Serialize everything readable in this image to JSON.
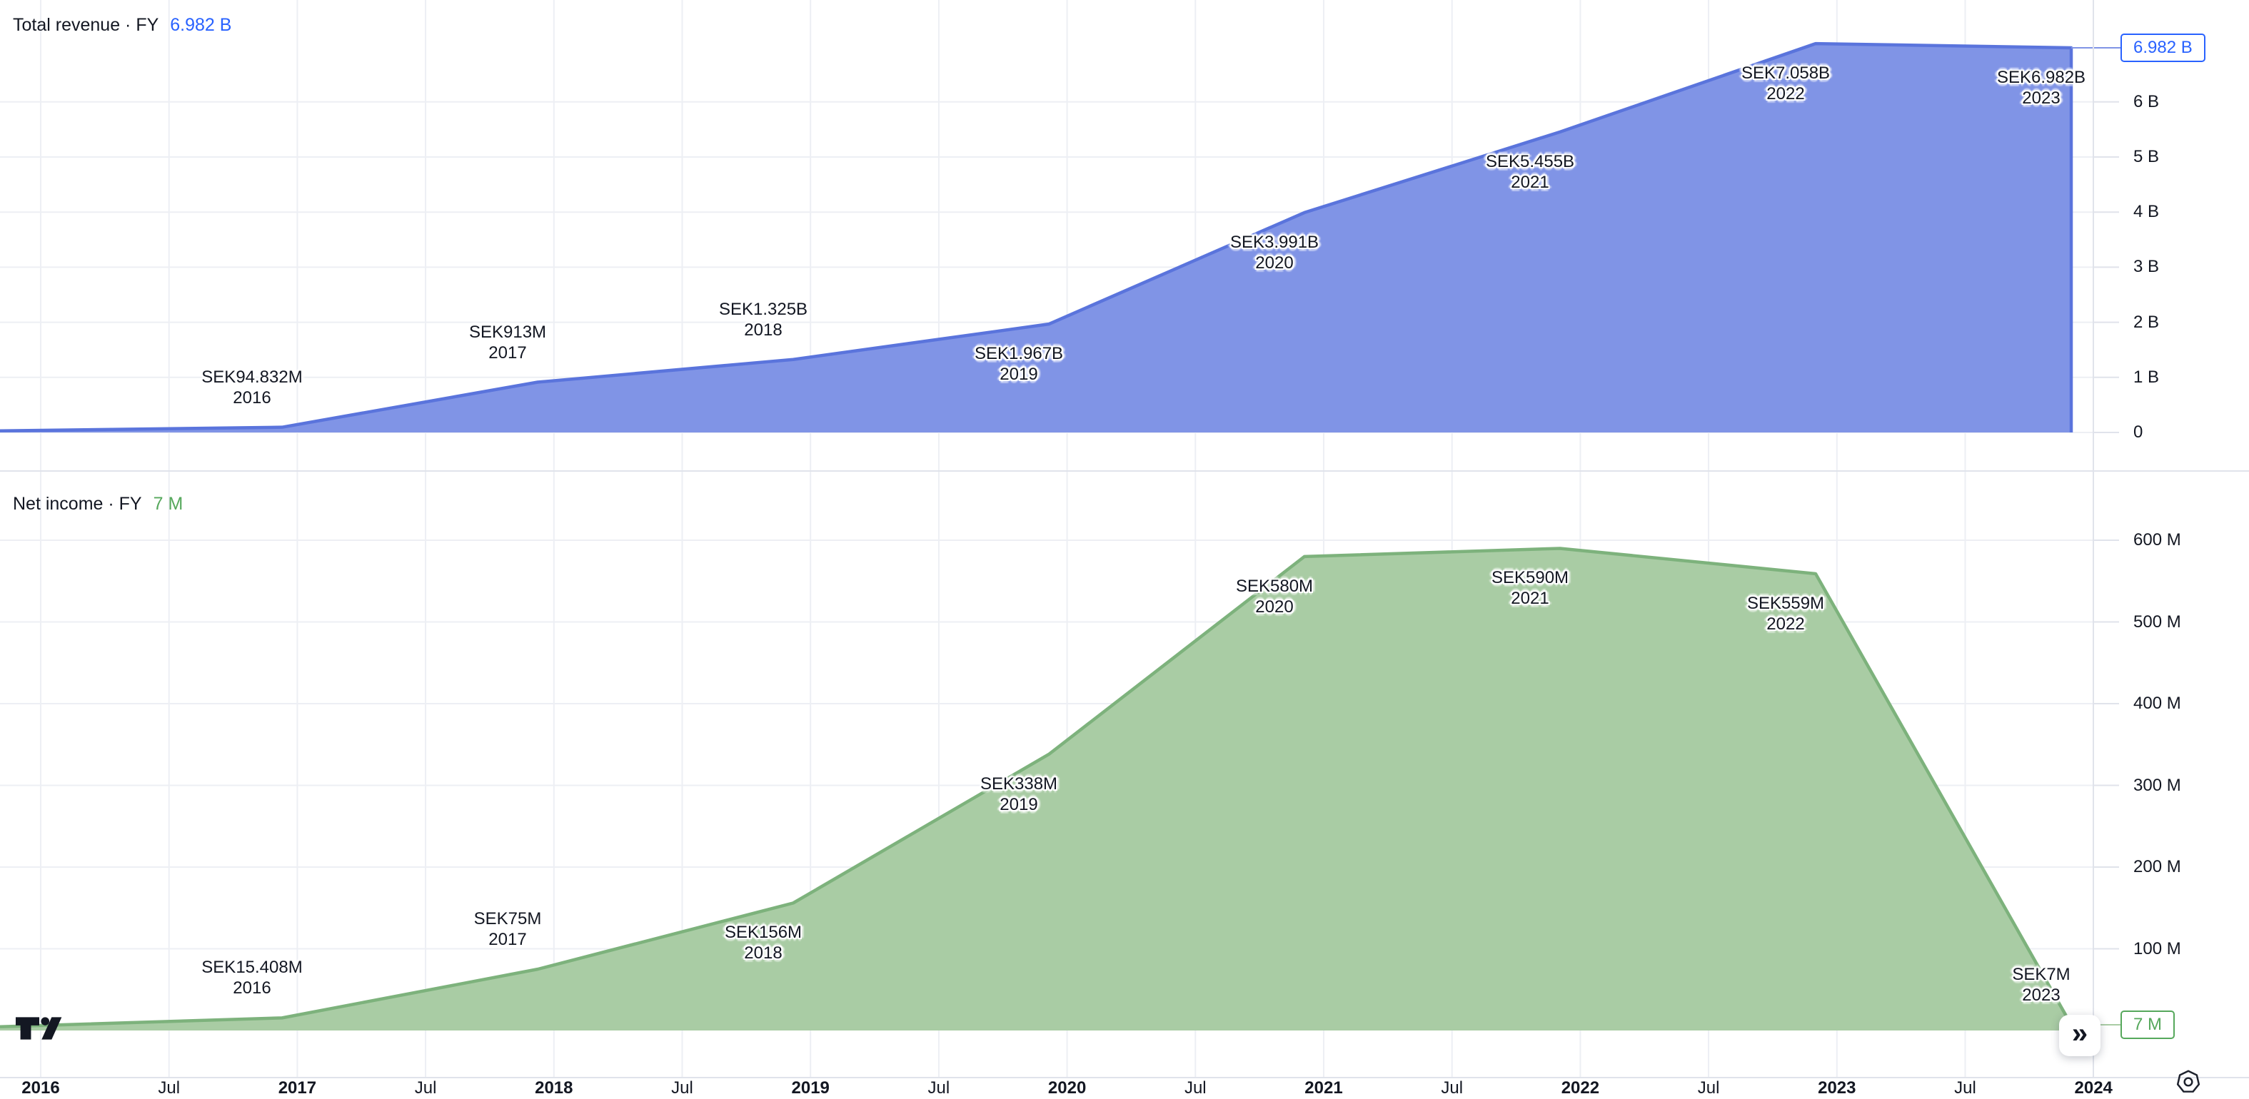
{
  "page": {
    "background": "#ffffff"
  },
  "chart_data": [
    {
      "type": "area",
      "panel": "total-revenue",
      "title": "Total revenue · FY",
      "current_value": "6.982 B",
      "currency": "SEK",
      "categories": [
        "2016",
        "2017",
        "2018",
        "2019",
        "2020",
        "2021",
        "2022",
        "2023"
      ],
      "values_sek_m": [
        94.832,
        913,
        1325,
        1967,
        3991,
        5455,
        7058,
        6982
      ],
      "point_labels": [
        "SEK94.832M",
        "SEK913M",
        "SEK1.325B",
        "SEK1.967B",
        "SEK3.991B",
        "SEK5.455B",
        "SEK7.058B",
        "SEK6.982B"
      ],
      "label_sides": [
        "above",
        "above",
        "above",
        "below",
        "below",
        "below",
        "below",
        "below"
      ],
      "y_ticks": [
        {
          "label": "6 B",
          "value_m": 6000
        },
        {
          "label": "5 B",
          "value_m": 5000
        },
        {
          "label": "4 B",
          "value_m": 4000
        },
        {
          "label": "3 B",
          "value_m": 3000
        },
        {
          "label": "2 B",
          "value_m": 2000
        },
        {
          "label": "1 B",
          "value_m": 1000
        },
        {
          "label": "0",
          "value_m": 0
        }
      ],
      "ylim_sek_m": [
        0,
        7850
      ],
      "xlim": [
        "2016",
        "2024"
      ],
      "grid": true,
      "legend": false,
      "axis_position": "right",
      "line_color": "#5A74DC",
      "fill_color": "#8094E6",
      "accent_color": "#2962FF"
    },
    {
      "type": "area",
      "panel": "net-income",
      "title": "Net income · FY",
      "current_value": "7 M",
      "currency": "SEK",
      "categories": [
        "2016",
        "2017",
        "2018",
        "2019",
        "2020",
        "2021",
        "2022",
        "2023"
      ],
      "values_sek_m": [
        15.408,
        75,
        156,
        338,
        580,
        590,
        559,
        7
      ],
      "point_labels": [
        "SEK15.408M",
        "SEK75M",
        "SEK156M",
        "SEK338M",
        "SEK580M",
        "SEK590M",
        "SEK559M",
        "SEK7M"
      ],
      "label_sides": [
        "above",
        "above",
        "below",
        "below",
        "below",
        "below",
        "below",
        "above"
      ],
      "y_ticks": [
        {
          "label": "600 M",
          "value_m": 600
        },
        {
          "label": "500 M",
          "value_m": 500
        },
        {
          "label": "400 M",
          "value_m": 400
        },
        {
          "label": "300 M",
          "value_m": 300
        },
        {
          "label": "200 M",
          "value_m": 200
        },
        {
          "label": "100 M",
          "value_m": 100
        }
      ],
      "ylim_sek_m": [
        0,
        688
      ],
      "xlim": [
        "2016",
        "2024"
      ],
      "grid": true,
      "legend": false,
      "axis_position": "right",
      "line_color": "#7DB27C",
      "fill_color": "#A9CCA4",
      "accent_color": "#56A85C"
    }
  ],
  "x_axis": {
    "years": [
      "2016",
      "2017",
      "2018",
      "2019",
      "2020",
      "2021",
      "2022",
      "2023",
      "2024"
    ],
    "mid_label": "Jul"
  },
  "controls": {
    "jump_to_recent_glyph": "»"
  },
  "branding": {
    "logo_name": "tradingview-logo"
  },
  "colors": {
    "grid": "#EDEFF4",
    "separator": "#E0E3EB",
    "text": "#131722"
  }
}
